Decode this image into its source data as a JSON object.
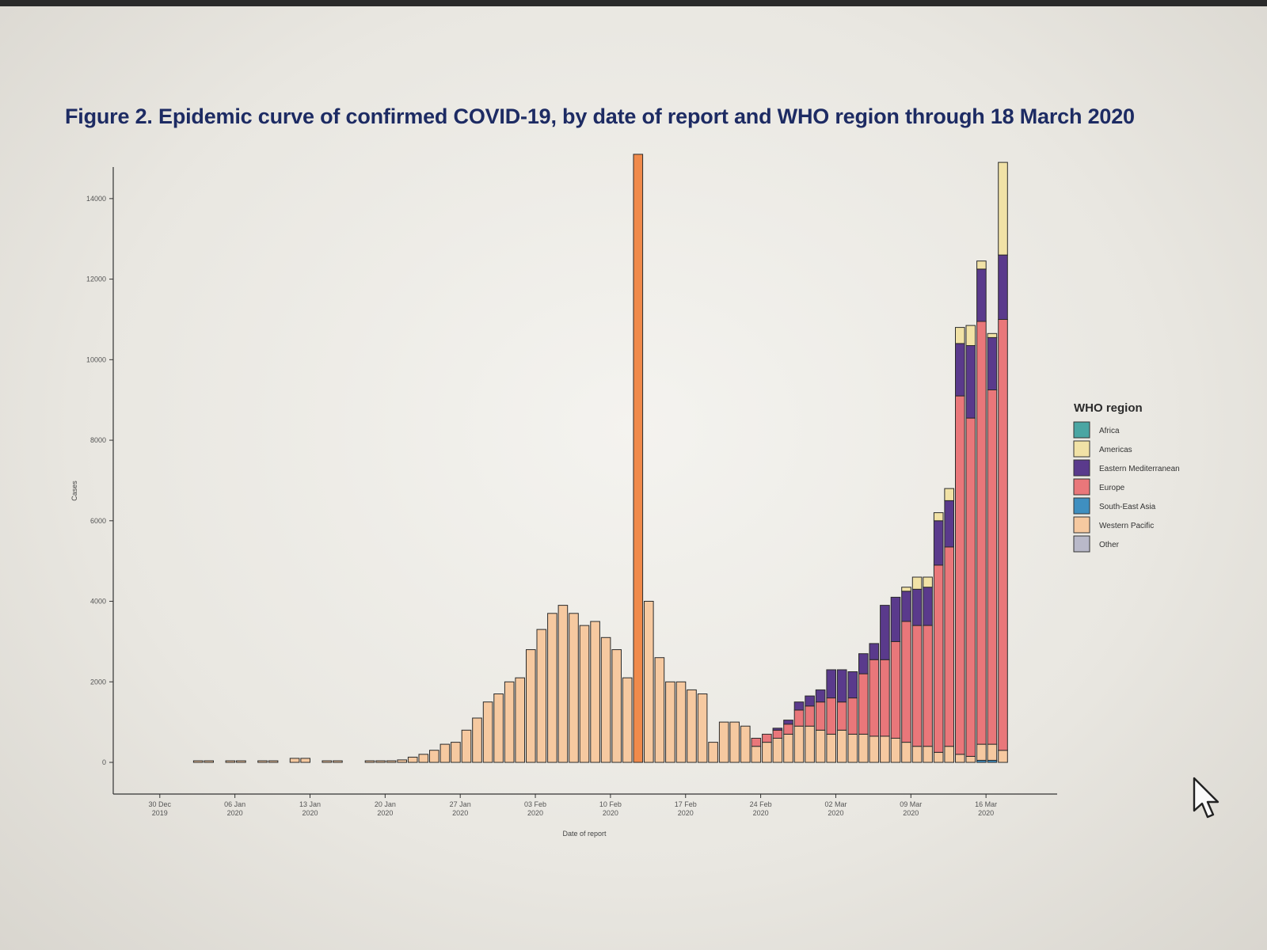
{
  "figure_title": "Figure 2. Epidemic curve of confirmed COVID-19, by date of report and WHO region through 18 March 2020",
  "colors": {
    "Africa": "#4aa6a3",
    "Americas": "#f1e2a6",
    "Eastern Mediterranean": "#5a3a8c",
    "Europe": "#e9777a",
    "South-East Asia": "#3f8fc0",
    "Western Pacific": "#f6c9a0",
    "Western Pacific spike": "#f08a4b",
    "Other": "#b9b9c9"
  },
  "chart_data": {
    "type": "bar",
    "stacked": true,
    "title": "",
    "xlabel": "Date of report",
    "ylabel": "Cases",
    "ylim": [
      0,
      16000
    ],
    "y_ticks": [
      0,
      2000,
      4000,
      6000,
      8000,
      10000,
      12000,
      14000
    ],
    "x_tick_labels": [
      {
        "line1": "30 Dec",
        "line2": "2019"
      },
      {
        "line1": "06 Jan",
        "line2": "2020"
      },
      {
        "line1": "13 Jan",
        "line2": "2020"
      },
      {
        "line1": "20 Jan",
        "line2": "2020"
      },
      {
        "line1": "27 Jan",
        "line2": "2020"
      },
      {
        "line1": "03 Feb",
        "line2": "2020"
      },
      {
        "line1": "10 Feb",
        "line2": "2020"
      },
      {
        "line1": "17 Feb",
        "line2": "2020"
      },
      {
        "line1": "24 Feb",
        "line2": "2020"
      },
      {
        "line1": "02 Mar",
        "line2": "2020"
      },
      {
        "line1": "09 Mar",
        "line2": "2020"
      },
      {
        "line1": "16 Mar",
        "line2": "2020"
      }
    ],
    "legend_title": "WHO region",
    "legend_position": "right",
    "series": [
      {
        "name": "Africa"
      },
      {
        "name": "Americas"
      },
      {
        "name": "Eastern Mediterranean"
      },
      {
        "name": "Europe"
      },
      {
        "name": "South-East Asia"
      },
      {
        "name": "Western Pacific"
      },
      {
        "name": "Other"
      }
    ],
    "stack_order": [
      "Other",
      "South-East Asia",
      "Western Pacific",
      "Africa",
      "Europe",
      "Eastern Mediterranean",
      "Americas"
    ],
    "bars": [
      {
        "date": "2020-01-03",
        "Western Pacific": 40
      },
      {
        "date": "2020-01-04",
        "Western Pacific": 40
      },
      {
        "date": "2020-01-06",
        "Western Pacific": 40
      },
      {
        "date": "2020-01-07",
        "Western Pacific": 40
      },
      {
        "date": "2020-01-09",
        "Western Pacific": 40
      },
      {
        "date": "2020-01-10",
        "Western Pacific": 40
      },
      {
        "date": "2020-01-12",
        "Western Pacific": 100
      },
      {
        "date": "2020-01-13",
        "Western Pacific": 100
      },
      {
        "date": "2020-01-15",
        "Western Pacific": 40
      },
      {
        "date": "2020-01-16",
        "Western Pacific": 40
      },
      {
        "date": "2020-01-19",
        "Western Pacific": 40
      },
      {
        "date": "2020-01-20",
        "Western Pacific": 40
      },
      {
        "date": "2020-01-21",
        "Western Pacific": 40
      },
      {
        "date": "2020-01-22",
        "Western Pacific": 60
      },
      {
        "date": "2020-01-23",
        "Western Pacific": 130
      },
      {
        "date": "2020-01-24",
        "Western Pacific": 200
      },
      {
        "date": "2020-01-25",
        "Western Pacific": 300
      },
      {
        "date": "2020-01-26",
        "Western Pacific": 450
      },
      {
        "date": "2020-01-27",
        "Western Pacific": 500
      },
      {
        "date": "2020-01-28",
        "Western Pacific": 800
      },
      {
        "date": "2020-01-29",
        "Western Pacific": 1100
      },
      {
        "date": "2020-01-30",
        "Western Pacific": 1500
      },
      {
        "date": "2020-01-31",
        "Western Pacific": 1700
      },
      {
        "date": "2020-02-01",
        "Western Pacific": 2000
      },
      {
        "date": "2020-02-02",
        "Western Pacific": 2100
      },
      {
        "date": "2020-02-03",
        "Western Pacific": 2800
      },
      {
        "date": "2020-02-04",
        "Western Pacific": 3300
      },
      {
        "date": "2020-02-05",
        "Western Pacific": 3700
      },
      {
        "date": "2020-02-06",
        "Western Pacific": 3900
      },
      {
        "date": "2020-02-07",
        "Western Pacific": 3700
      },
      {
        "date": "2020-02-08",
        "Western Pacific": 3400
      },
      {
        "date": "2020-02-09",
        "Western Pacific": 3500
      },
      {
        "date": "2020-02-10",
        "Western Pacific": 3100
      },
      {
        "date": "2020-02-11",
        "Western Pacific": 2800
      },
      {
        "date": "2020-02-12",
        "Western Pacific": 2100
      },
      {
        "date": "2020-02-13",
        "Western Pacific": 15100,
        "highlight": true
      },
      {
        "date": "2020-02-14",
        "Western Pacific": 4000
      },
      {
        "date": "2020-02-15",
        "Western Pacific": 2600
      },
      {
        "date": "2020-02-16",
        "Western Pacific": 2000
      },
      {
        "date": "2020-02-17",
        "Western Pacific": 2000
      },
      {
        "date": "2020-02-18",
        "Western Pacific": 1800
      },
      {
        "date": "2020-02-19",
        "Western Pacific": 1700
      },
      {
        "date": "2020-02-20",
        "Western Pacific": 500
      },
      {
        "date": "2020-02-21",
        "Western Pacific": 1000
      },
      {
        "date": "2020-02-22",
        "Western Pacific": 1000
      },
      {
        "date": "2020-02-23",
        "Western Pacific": 900
      },
      {
        "date": "2020-02-24",
        "Western Pacific": 400,
        "Europe": 200
      },
      {
        "date": "2020-02-25",
        "Western Pacific": 500,
        "Europe": 200
      },
      {
        "date": "2020-02-26",
        "Western Pacific": 600,
        "Europe": 200,
        "Eastern Mediterranean": 50
      },
      {
        "date": "2020-02-27",
        "Western Pacific": 700,
        "Europe": 250,
        "Eastern Mediterranean": 100
      },
      {
        "date": "2020-02-28",
        "Western Pacific": 900,
        "Europe": 400,
        "Eastern Mediterranean": 200
      },
      {
        "date": "2020-02-29",
        "Western Pacific": 900,
        "Europe": 500,
        "Eastern Mediterranean": 250
      },
      {
        "date": "2020-03-01",
        "Western Pacific": 800,
        "Europe": 700,
        "Eastern Mediterranean": 300
      },
      {
        "date": "2020-03-02",
        "Western Pacific": 700,
        "Europe": 900,
        "Eastern Mediterranean": 700
      },
      {
        "date": "2020-03-03",
        "Western Pacific": 800,
        "Europe": 700,
        "Eastern Mediterranean": 800
      },
      {
        "date": "2020-03-04",
        "Western Pacific": 700,
        "Europe": 900,
        "Eastern Mediterranean": 650
      },
      {
        "date": "2020-03-05",
        "Western Pacific": 700,
        "Europe": 1500,
        "Eastern Mediterranean": 500
      },
      {
        "date": "2020-03-06",
        "Western Pacific": 650,
        "Europe": 1900,
        "Eastern Mediterranean": 400
      },
      {
        "date": "2020-03-07",
        "Western Pacific": 650,
        "Europe": 1900,
        "Eastern Mediterranean": 1350
      },
      {
        "date": "2020-03-08",
        "Western Pacific": 600,
        "Europe": 2400,
        "Eastern Mediterranean": 1100
      },
      {
        "date": "2020-03-09",
        "Western Pacific": 500,
        "Europe": 3000,
        "Eastern Mediterranean": 750,
        "Americas": 100
      },
      {
        "date": "2020-03-10",
        "Western Pacific": 400,
        "Europe": 3000,
        "Eastern Mediterranean": 900,
        "Americas": 300
      },
      {
        "date": "2020-03-11",
        "Western Pacific": 400,
        "Europe": 3000,
        "Eastern Mediterranean": 950,
        "Americas": 250
      },
      {
        "date": "2020-03-12",
        "Western Pacific": 250,
        "Europe": 4650,
        "Eastern Mediterranean": 1100,
        "Americas": 200
      },
      {
        "date": "2020-03-13",
        "Western Pacific": 400,
        "Europe": 4950,
        "Eastern Mediterranean": 1150,
        "Americas": 300
      },
      {
        "date": "2020-03-14",
        "Western Pacific": 200,
        "Europe": 8900,
        "Eastern Mediterranean": 1300,
        "Americas": 400
      },
      {
        "date": "2020-03-15",
        "Western Pacific": 150,
        "Europe": 8400,
        "Eastern Mediterranean": 1800,
        "Americas": 500
      },
      {
        "date": "2020-03-16",
        "Western Pacific": 400,
        "Europe": 10500,
        "Eastern Mediterranean": 1300,
        "Americas": 200,
        "South-East Asia": 50
      },
      {
        "date": "2020-03-17",
        "Western Pacific": 400,
        "Europe": 8800,
        "Eastern Mediterranean": 1300,
        "Americas": 100,
        "South-East Asia": 50
      },
      {
        "date": "2020-03-18",
        "Western Pacific": 300,
        "Europe": 10700,
        "Eastern Mediterranean": 1600,
        "Americas": 2300
      }
    ]
  },
  "cursor": {
    "icon": "mouse-pointer-icon"
  }
}
